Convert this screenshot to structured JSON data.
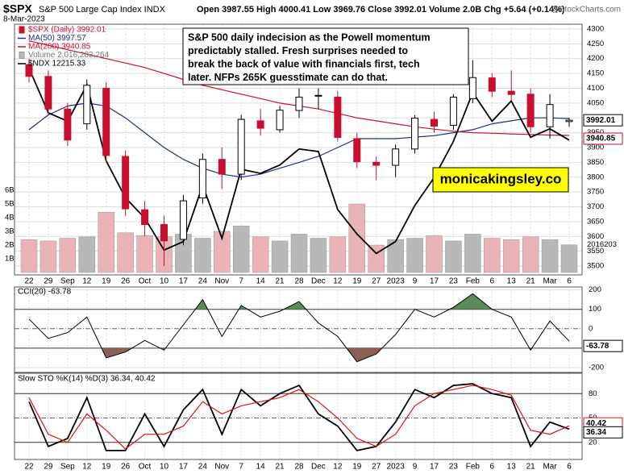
{
  "header": {
    "symbol": "$SPX",
    "name": "S&P 500 Large Cap Index INDX",
    "date": "8-Mar-2023",
    "ohlc": "Open 3987.55 High 4000.41 Low 3969.76 Close 3992.01 Volume 2.0B Chg +5.64 (+0.14%)",
    "source": "@StockCharts.com"
  },
  "chart_data": [
    {
      "type": "candlestick",
      "name": "$SPX (Daily) 3992.01",
      "up_color": "#000000",
      "down_color": "#c8102e",
      "categories": [
        "22",
        "29",
        "Sep",
        "12",
        "19",
        "26",
        "Oct",
        "10",
        "17",
        "24",
        "Nov",
        "7",
        "14",
        "21",
        "28",
        "Dec",
        "12",
        "19",
        "27",
        "2023",
        "9",
        "17",
        "23",
        "Feb",
        "6",
        "13",
        "21",
        "Mar",
        "6"
      ],
      "open": [
        4180,
        4140,
        4030,
        3980,
        4100,
        3870,
        3690,
        3640,
        3590,
        3730,
        3860,
        3810,
        3990,
        3960,
        4025,
        4075,
        4070,
        3930,
        3850,
        3840,
        3895,
        3995,
        3975,
        4065,
        4135,
        4090,
        4080,
        3970,
        3987.55
      ],
      "high": [
        4200,
        4160,
        4050,
        4130,
        4120,
        3890,
        3720,
        3670,
        3740,
        3880,
        3900,
        4010,
        4030,
        4040,
        4100,
        4100,
        4090,
        3950,
        3870,
        3910,
        4010,
        4020,
        4080,
        4195,
        4150,
        4160,
        4100,
        4080,
        4000.41
      ],
      "low": [
        4120,
        4010,
        3905,
        3960,
        3850,
        3670,
        3600,
        3500,
        3570,
        3710,
        3760,
        3790,
        3940,
        3950,
        4000,
        4030,
        3920,
        3830,
        3790,
        3800,
        3880,
        3950,
        3960,
        4050,
        4070,
        4060,
        3950,
        3930,
        3969.76
      ],
      "close": [
        4140,
        4030,
        3925,
        4110,
        3873,
        3693,
        3640,
        3585,
        3720,
        3860,
        3810,
        3995,
        3965,
        4026,
        4070,
        4076,
        3934,
        3852,
        3840,
        3895,
        3999,
        3972,
        4070,
        4136,
        4090,
        4079,
        3970,
        4045,
        3992.01
      ],
      "series": [
        {
          "name": "MA(50) 3997.57",
          "color": "#1f2d8c",
          "values": [
            3960,
            4010,
            4040,
            4050,
            4040,
            4000,
            3950,
            3900,
            3860,
            3830,
            3810,
            3800,
            3810,
            3830,
            3850,
            3870,
            3900,
            3930,
            3930,
            3930,
            3935,
            3940,
            3950,
            3960,
            3980,
            3990,
            4000,
            4000,
            3997.57
          ]
        },
        {
          "name": "MA(200) 3940.85",
          "color": "#c8102e",
          "values": [
            4260,
            4245,
            4230,
            4215,
            4200,
            4185,
            4170,
            4150,
            4130,
            4110,
            4095,
            4080,
            4065,
            4050,
            4040,
            4030,
            4015,
            4000,
            3990,
            3980,
            3970,
            3962,
            3955,
            3950,
            3948,
            3946,
            3944,
            3942,
            3940.85
          ]
        },
        {
          "name": "$NDX 12215.33",
          "color": "#000000",
          "axis": "y2",
          "values": [
            13070,
            12540,
            12440,
            12870,
            11970,
            11530,
            11290,
            10910,
            11010,
            11680,
            11050,
            11870,
            11820,
            11920,
            12110,
            12080,
            11390,
            11100,
            10870,
            11010,
            11440,
            11770,
            12200,
            12780,
            12440,
            12680,
            12250,
            12350,
            12215.33
          ]
        }
      ],
      "ylim": [
        3480,
        4310
      ],
      "yticks": [
        3500,
        3550,
        3600,
        3650,
        3700,
        3750,
        3800,
        3850,
        3900,
        3950,
        4000,
        4050,
        4100,
        4150,
        4200,
        4250,
        4300
      ],
      "y2lim": [
        10650,
        13570
      ],
      "grid": true,
      "annotation": [
        "S&P 500 daily indecision as the Powell momentum",
        "predictably stalled. Fresh surprises needed to",
        "break the back of value with financials first, tech",
        "later. NFPs 265K guesstimate can do that."
      ],
      "watermark": "monicakingsley.co"
    },
    {
      "type": "bar",
      "name": "Volume 2,016,203,264",
      "up_color": "#b8b8b8",
      "down_color": "#e9b3b8",
      "values": [
        2400000000,
        2300000000,
        2500000000,
        2600000000,
        4400000000,
        2900000000,
        2700000000,
        2600000000,
        2800000000,
        2500000000,
        3000000000,
        3400000000,
        2600000000,
        2300000000,
        2800000000,
        2500000000,
        2600000000,
        5000000000,
        2000000000,
        2400000000,
        2500000000,
        2700000000,
        2300000000,
        2800000000,
        2500000000,
        2400000000,
        2600000000,
        2400000000,
        2016203264
      ],
      "last_label": "2016203",
      "ylim": [
        0,
        6000000000
      ],
      "yticks": [
        {
          "value": 1000000000,
          "label": "1B"
        },
        {
          "value": 2000000000,
          "label": "2B"
        },
        {
          "value": 3000000000,
          "label": "3B"
        },
        {
          "value": 4000000000,
          "label": "4B"
        },
        {
          "value": 5000000000,
          "label": "5B"
        },
        {
          "value": 6000000000,
          "label": "6B"
        }
      ]
    },
    {
      "type": "line",
      "title": "CCI(20) -63.78",
      "color": "#000000",
      "fill_above": "#5b8a5b",
      "fill_below": "#8c5e56",
      "values": [
        50,
        -50,
        -20,
        60,
        -150,
        -120,
        -60,
        -110,
        20,
        150,
        -40,
        120,
        60,
        90,
        140,
        30,
        -40,
        -170,
        -130,
        -30,
        100,
        60,
        110,
        180,
        100,
        60,
        -110,
        40,
        -63.78
      ],
      "ylim": [
        -225,
        215
      ],
      "yticks": [
        200,
        100,
        0,
        -100,
        -200
      ]
    },
    {
      "type": "line",
      "title": "Slow STO %K(14) %D(3) 36.34, 40.42",
      "series": [
        {
          "color": "#000000",
          "values": [
            70,
            15,
            25,
            75,
            10,
            10,
            55,
            15,
            60,
            85,
            30,
            85,
            65,
            80,
            90,
            55,
            40,
            10,
            15,
            45,
            85,
            75,
            90,
            92,
            80,
            75,
            15,
            45,
            36.34
          ]
        },
        {
          "color": "#e01010",
          "values": [
            75,
            30,
            20,
            55,
            35,
            12,
            30,
            30,
            40,
            70,
            55,
            65,
            70,
            75,
            85,
            70,
            50,
            25,
            15,
            30,
            65,
            80,
            85,
            90,
            85,
            78,
            35,
            30,
            40.42
          ]
        }
      ],
      "ylim": [
        -1,
        105
      ],
      "yticks": [
        80,
        50,
        20
      ]
    }
  ]
}
